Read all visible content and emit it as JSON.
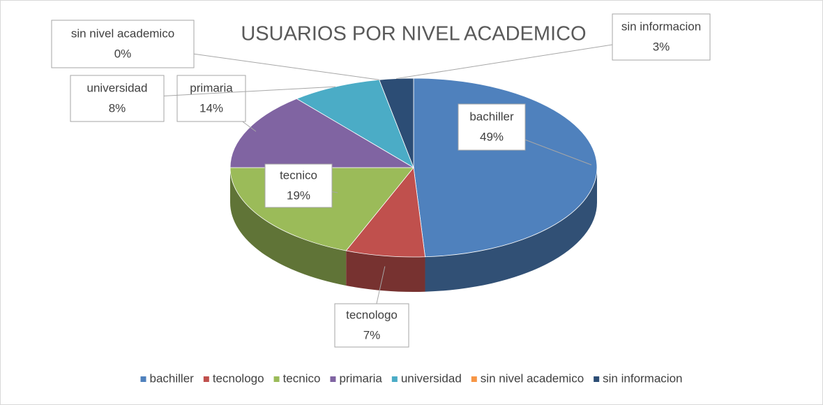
{
  "chart_data": {
    "type": "pie3d",
    "title": "USUARIOS POR NIVEL ACADEMICO",
    "categories": [
      "bachiller",
      "tecnologo",
      "tecnico",
      "primaria",
      "universidad",
      "sin nivel academico",
      "sin informacion"
    ],
    "values": [
      49,
      7,
      19,
      14,
      8,
      0,
      3
    ],
    "value_labels": [
      "49%",
      "7%",
      "19%",
      "14%",
      "8%",
      "0%",
      "3%"
    ],
    "colors": [
      "#4f81bd",
      "#c0504d",
      "#9bbb59",
      "#8064a2",
      "#4bacc6",
      "#f79646",
      "#2c4d75"
    ],
    "legend": "bottom"
  }
}
